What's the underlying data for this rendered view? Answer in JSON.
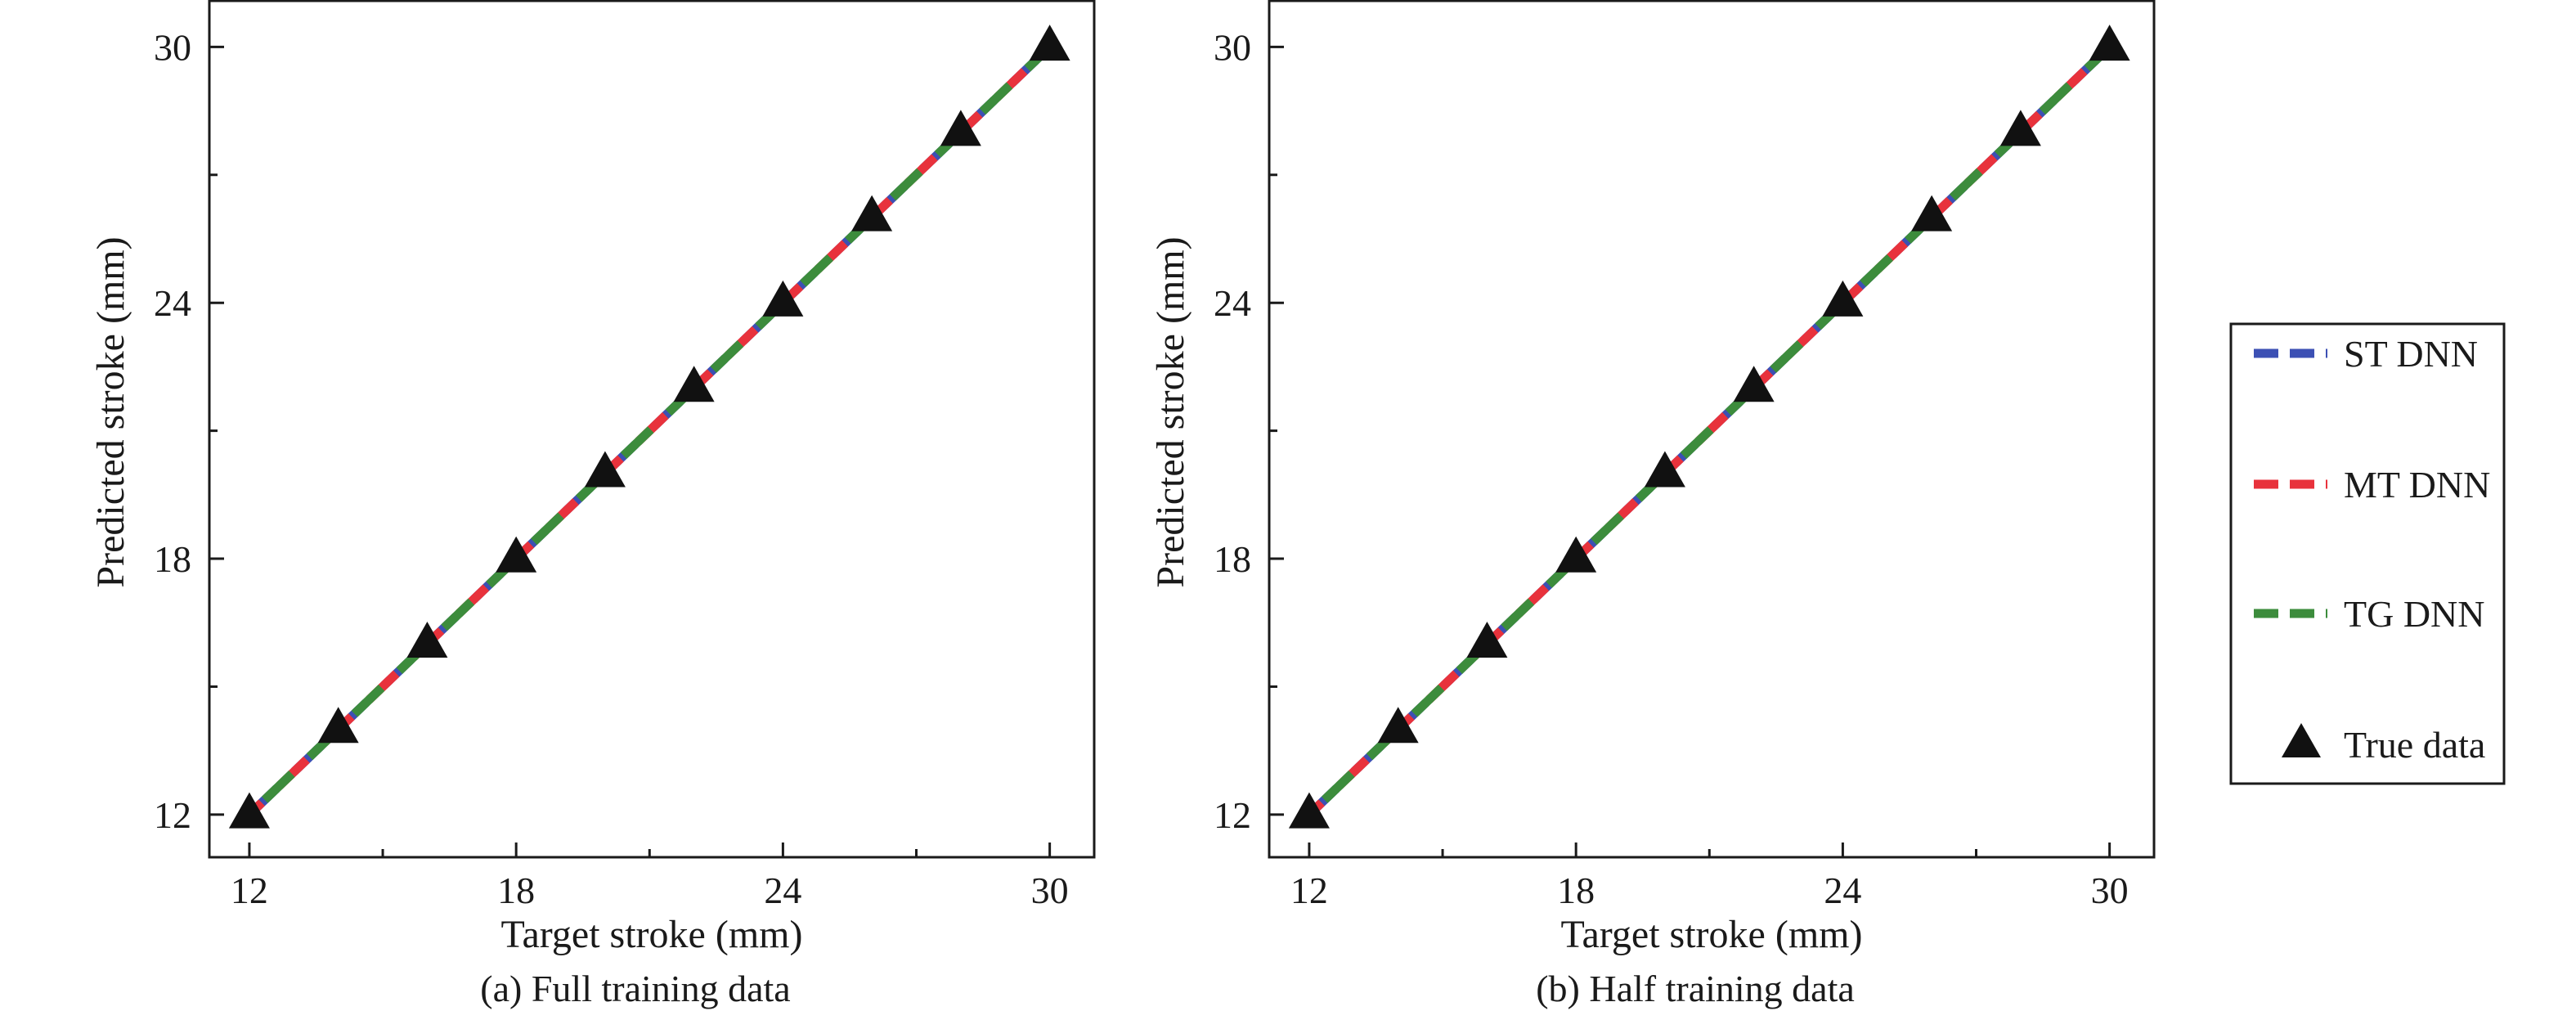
{
  "chart_data": [
    {
      "type": "line",
      "caption": "(a) Full training data",
      "xlabel": "Target stroke (mm)",
      "ylabel": "Predicted stroke (mm)",
      "xlim": [
        11.1,
        31.0
      ],
      "ylim": [
        11.0,
        31.1
      ],
      "xticks": [
        12,
        18,
        24,
        30
      ],
      "yticks": [
        12,
        18,
        24,
        30
      ],
      "x": [
        12,
        14,
        16,
        18,
        20,
        22,
        24,
        26,
        28,
        30
      ],
      "series": [
        {
          "name": "ST DNN",
          "style": "dashed",
          "color": "#3c50b4",
          "values": [
            12,
            14,
            16,
            18,
            20,
            22,
            24,
            26,
            28,
            30
          ]
        },
        {
          "name": "MT DNN",
          "style": "dashed",
          "color": "#e8323c",
          "values": [
            12,
            14,
            16,
            18,
            20,
            22,
            24,
            26,
            28,
            30
          ]
        },
        {
          "name": "TG DNN",
          "style": "dashed",
          "color": "#3c8c3c",
          "values": [
            12,
            14,
            16,
            18,
            20,
            22,
            24,
            26,
            28,
            30
          ]
        },
        {
          "name": "True data",
          "style": "triangle-marker",
          "color": "#111111",
          "values": [
            12,
            14,
            16,
            18,
            20,
            22,
            24,
            26,
            28,
            30
          ]
        }
      ]
    },
    {
      "type": "line",
      "caption": "(b) Half training data",
      "xlabel": "Target stroke (mm)",
      "ylabel": "Predicted stroke (mm)",
      "xlim": [
        11.1,
        31.0
      ],
      "ylim": [
        11.0,
        31.1
      ],
      "xticks": [
        12,
        18,
        24,
        30
      ],
      "yticks": [
        12,
        18,
        24,
        30
      ],
      "x": [
        12,
        14,
        16,
        18,
        20,
        22,
        24,
        26,
        28,
        30
      ],
      "series": [
        {
          "name": "ST DNN",
          "style": "dashed",
          "color": "#3c50b4",
          "values": [
            12,
            14,
            16,
            18,
            20,
            22,
            24,
            26,
            28,
            30
          ]
        },
        {
          "name": "MT DNN",
          "style": "dashed",
          "color": "#e8323c",
          "values": [
            12,
            14,
            16,
            18,
            20,
            22,
            24,
            26,
            28,
            30
          ]
        },
        {
          "name": "TG DNN",
          "style": "dashed",
          "color": "#3c8c3c",
          "values": [
            12,
            14,
            16,
            18,
            20,
            22,
            24,
            26,
            28,
            30
          ]
        },
        {
          "name": "True data",
          "style": "triangle-marker",
          "color": "#111111",
          "values": [
            12,
            14,
            16,
            18,
            20,
            22,
            24,
            26,
            28,
            30
          ]
        }
      ]
    }
  ],
  "legend": {
    "placement": "right",
    "items": [
      {
        "label": "ST DNN",
        "symbol": "dash",
        "color": "#3c50b4"
      },
      {
        "label": "MT DNN",
        "symbol": "dash",
        "color": "#e8323c"
      },
      {
        "label": "TG DNN",
        "symbol": "dash",
        "color": "#3c8c3c"
      },
      {
        "label": "True data",
        "symbol": "triangle",
        "color": "#111111"
      }
    ]
  }
}
